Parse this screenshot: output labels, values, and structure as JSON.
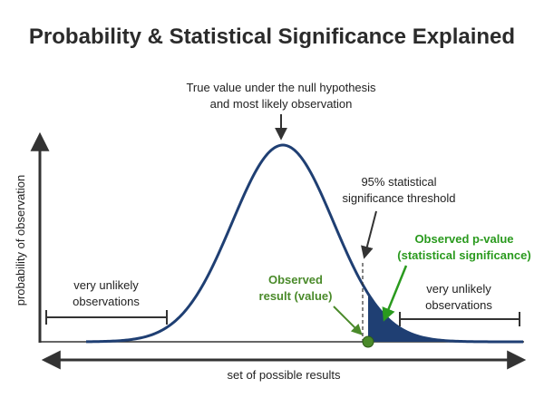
{
  "title": "Probability & Statistical Significance Explained",
  "annotations": {
    "peak_line1": "True value under the null hypothesis",
    "peak_line2": "and most likely observation",
    "threshold_line1": "95% statistical",
    "threshold_line2": "significance threshold",
    "pvalue_line1": "Observed p-value",
    "pvalue_line2": "(statistical significance)",
    "observed_line1": "Observed",
    "observed_line2": "result (value)",
    "left_tail_line1": "very unlikely",
    "left_tail_line2": "observations",
    "right_tail_line1": "very unlikely",
    "right_tail_line2": "observations"
  },
  "axes": {
    "y_label": "probability of observation",
    "x_label": "set of possible results"
  },
  "colors": {
    "curve": "#1f3f73",
    "tail_fill": "#1f3f73",
    "observed_marker": "#4a8a2a",
    "observed_text": "#4a8a2a",
    "pvalue_text": "#2a9a1e",
    "arrows": "#333333",
    "title": "#2b2b2b"
  }
}
